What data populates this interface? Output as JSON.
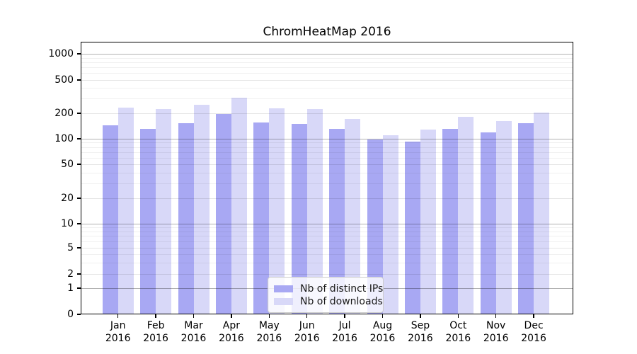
{
  "figure": {
    "title": "ChromHeatMap 2016"
  },
  "chart_data": {
    "type": "bar",
    "title": "ChromHeatMap 2016",
    "categories": [
      "Jan 2016",
      "Feb 2016",
      "Mar 2016",
      "Apr 2016",
      "May 2016",
      "Jun 2016",
      "Jul 2016",
      "Aug 2016",
      "Sep 2016",
      "Oct 2016",
      "Nov 2016",
      "Dec 2016"
    ],
    "series": [
      {
        "name": "Nb of distinct IPs",
        "color": "#a8a8f3",
        "values": [
          145,
          132,
          153,
          195,
          155,
          150,
          131,
          99,
          93,
          130,
          119,
          152
        ]
      },
      {
        "name": "Nb of downloads",
        "color": "#d8d8f8",
        "values": [
          235,
          226,
          255,
          305,
          230,
          225,
          170,
          110,
          128,
          183,
          163,
          204
        ]
      }
    ],
    "xlabel": "",
    "ylabel": "",
    "yscale": "symlog",
    "y_ticks": [
      0,
      1,
      2,
      5,
      10,
      20,
      50,
      100,
      200,
      500,
      1000
    ],
    "ylim": [
      0,
      1400
    ],
    "grid": true,
    "legend_position": "lower center"
  }
}
